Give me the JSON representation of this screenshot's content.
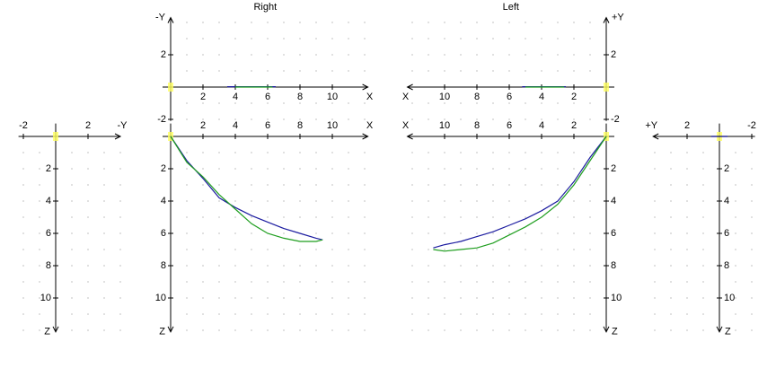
{
  "chart_data": [
    {
      "type": "line",
      "title": "Right",
      "x_label": "X",
      "y_label": "-Y",
      "xlim": [
        -0.5,
        12.2
      ],
      "ylim": [
        -2.1,
        4.3
      ],
      "xticks": [
        2,
        4,
        6,
        8,
        10
      ],
      "yticks": [
        -2,
        2
      ],
      "grid": true,
      "series": [
        {
          "color": "#1c1ca0",
          "x": [
            3.5,
            6.5
          ],
          "values": [
            0.02,
            0.02
          ]
        },
        {
          "color": "#1f9e1f",
          "x": [
            4.0,
            6.3
          ],
          "values": [
            0,
            0
          ]
        }
      ]
    },
    {
      "type": "line",
      "x_label": "X",
      "y_label": "Z",
      "xlim": [
        -0.5,
        12.2
      ],
      "ylim": [
        -0.8,
        12.1
      ],
      "xticks": [
        2,
        4,
        6,
        8,
        10
      ],
      "yticks": [
        2,
        4,
        6,
        8,
        10
      ],
      "grid": true,
      "series": [
        {
          "color": "#1c1ca0",
          "x": [
            0,
            1,
            2,
            3,
            4,
            5,
            6,
            7,
            8,
            9,
            9.4
          ],
          "values": [
            0,
            1.5,
            2.6,
            3.8,
            4.4,
            4.9,
            5.3,
            5.7,
            6.0,
            6.3,
            6.4
          ]
        },
        {
          "color": "#1f9e1f",
          "x": [
            0,
            1,
            2,
            3,
            4,
            5,
            6,
            7,
            8,
            9,
            9.4
          ],
          "values": [
            0,
            1.6,
            2.5,
            3.6,
            4.5,
            5.4,
            6.0,
            6.3,
            6.5,
            6.5,
            6.4
          ]
        }
      ]
    },
    {
      "type": "line",
      "title": "Left",
      "x_label": "X",
      "y_label": "+Y",
      "xlim": [
        -0.5,
        12.3
      ],
      "ylim": [
        -2.1,
        4.3
      ],
      "xticks": [
        2,
        4,
        6,
        8,
        10
      ],
      "yticks": [
        -2,
        2
      ],
      "grid": true,
      "series": [
        {
          "color": "#1c1ca0",
          "x": [
            2.5,
            5.2
          ],
          "values": [
            0.02,
            0.02
          ]
        },
        {
          "color": "#1f9e1f",
          "x": [
            2.6,
            5.0
          ],
          "values": [
            0,
            0
          ]
        }
      ]
    },
    {
      "type": "line",
      "x_label": "X",
      "y_label": "Z",
      "xlim": [
        -0.5,
        12.3
      ],
      "ylim": [
        -0.8,
        12.1
      ],
      "xticks": [
        2,
        4,
        6,
        8,
        10
      ],
      "yticks": [
        2,
        4,
        6,
        8,
        10
      ],
      "grid": true,
      "series": [
        {
          "color": "#1c1ca0",
          "x": [
            0,
            1,
            2,
            3,
            4,
            5,
            6,
            7,
            8,
            9,
            10,
            10.7
          ],
          "values": [
            0,
            1.3,
            2.8,
            4.0,
            4.6,
            5.1,
            5.5,
            5.9,
            6.2,
            6.5,
            6.7,
            6.9
          ]
        },
        {
          "color": "#1f9e1f",
          "x": [
            0,
            1,
            2,
            3,
            4,
            5,
            6,
            7,
            8,
            9,
            10,
            10.7
          ],
          "values": [
            0,
            1.5,
            3.0,
            4.2,
            5.0,
            5.6,
            6.1,
            6.6,
            6.9,
            7.0,
            7.1,
            7.0
          ]
        }
      ]
    },
    {
      "type": "line",
      "x_label": "-Y",
      "y_label": "Z",
      "xlim": [
        -2.3,
        4.0
      ],
      "ylim": [
        -0.8,
        12.1
      ],
      "xticks": [
        -2,
        2
      ],
      "yticks": [
        2,
        4,
        6,
        8,
        10
      ],
      "grid": true,
      "series": []
    },
    {
      "type": "line",
      "x_label": "+Y",
      "y_label": "Z",
      "xlim": [
        -2.2,
        4.1
      ],
      "ylim": [
        -0.8,
        12.1
      ],
      "xticks": [
        2,
        -2
      ],
      "yticks": [
        2,
        4,
        6,
        8,
        10
      ],
      "grid": true,
      "series": [
        {
          "color": "#000080",
          "x": [
            0.5,
            -0.5
          ],
          "values": [
            0,
            0
          ]
        }
      ]
    }
  ]
}
